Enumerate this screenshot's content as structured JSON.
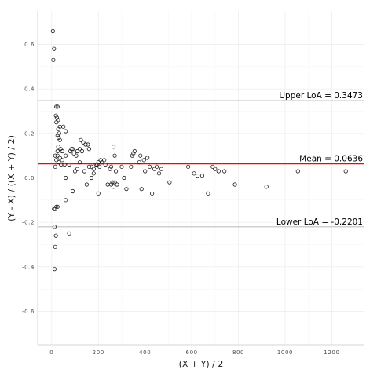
{
  "chart_data": {
    "type": "scatter",
    "title": "",
    "xlabel": "(X + Y) / 2",
    "ylabel": "(Y - X) / ((X + Y) / 2)",
    "xlim": [
      -60,
      1340
    ],
    "ylim": [
      -0.75,
      0.75
    ],
    "x_ticks": [
      0,
      200,
      400,
      600,
      800,
      1000,
      1200
    ],
    "x_tick_labels": [
      "0",
      "200",
      "400",
      "600",
      "800",
      "1000",
      "1200"
    ],
    "y_ticks": [
      -0.6,
      -0.4,
      -0.2,
      0.0,
      0.2,
      0.4,
      0.6
    ],
    "y_tick_labels": [
      "-0.6",
      "-0.4",
      "-0.2",
      "0.0",
      "0.2",
      "0.4",
      "0.6"
    ],
    "grid": true,
    "reference_lines": [
      {
        "name": "upper",
        "value": 0.3473,
        "label": "Upper LoA = 0.3473",
        "color": "#c0c0c0"
      },
      {
        "name": "mean",
        "value": 0.0636,
        "label": "Mean = 0.0636",
        "color": "#ff0000"
      },
      {
        "name": "lower",
        "value": -0.2201,
        "label": "Lower LoA = -0.2201",
        "color": "#c0c0c0"
      }
    ],
    "points": [
      [
        5,
        0.66
      ],
      [
        10,
        0.58
      ],
      [
        7,
        0.53
      ],
      [
        20,
        0.32
      ],
      [
        25,
        0.32
      ],
      [
        18,
        0.28
      ],
      [
        22,
        0.27
      ],
      [
        27,
        0.26
      ],
      [
        20,
        0.25
      ],
      [
        35,
        0.23
      ],
      [
        50,
        0.23
      ],
      [
        60,
        0.21
      ],
      [
        28,
        0.22
      ],
      [
        32,
        0.2
      ],
      [
        25,
        0.19
      ],
      [
        30,
        0.18
      ],
      [
        35,
        0.17
      ],
      [
        28,
        0.14
      ],
      [
        38,
        0.13
      ],
      [
        45,
        0.12
      ],
      [
        15,
        0.1
      ],
      [
        25,
        0.1
      ],
      [
        35,
        0.09
      ],
      [
        45,
        0.08
      ],
      [
        20,
        0.08
      ],
      [
        30,
        0.07
      ],
      [
        40,
        0.06
      ],
      [
        55,
        0.06
      ],
      [
        15,
        0.05
      ],
      [
        25,
        0.12
      ],
      [
        60,
        0.1
      ],
      [
        80,
        0.12
      ],
      [
        85,
        0.13
      ],
      [
        90,
        0.13
      ],
      [
        95,
        0.11
      ],
      [
        105,
        0.1
      ],
      [
        110,
        0.12
      ],
      [
        120,
        0.13
      ],
      [
        130,
        0.12
      ],
      [
        145,
        0.15
      ],
      [
        155,
        0.15
      ],
      [
        160,
        0.13
      ],
      [
        125,
        0.17
      ],
      [
        135,
        0.16
      ],
      [
        170,
        0.05
      ],
      [
        180,
        0.04
      ],
      [
        190,
        0.06
      ],
      [
        195,
        0.06
      ],
      [
        200,
        0.07
      ],
      [
        205,
        0.05
      ],
      [
        210,
        0.08
      ],
      [
        215,
        0.07
      ],
      [
        225,
        0.08
      ],
      [
        230,
        0.06
      ],
      [
        75,
        0.06
      ],
      [
        120,
        0.07
      ],
      [
        160,
        0.05
      ],
      [
        110,
        0.04
      ],
      [
        140,
        0.03
      ],
      [
        100,
        0.03
      ],
      [
        180,
        0.02
      ],
      [
        170,
        0.0
      ],
      [
        60,
        0.0
      ],
      [
        90,
        -0.06
      ],
      [
        150,
        -0.03
      ],
      [
        200,
        -0.07
      ],
      [
        240,
        -0.03
      ],
      [
        250,
        0.04
      ],
      [
        255,
        0.05
      ],
      [
        265,
        0.14
      ],
      [
        270,
        0.1
      ],
      [
        275,
        0.03
      ],
      [
        260,
        -0.02
      ],
      [
        270,
        -0.02
      ],
      [
        280,
        -0.03
      ],
      [
        265,
        -0.04
      ],
      [
        255,
        -0.03
      ],
      [
        300,
        0.05
      ],
      [
        310,
        0.0
      ],
      [
        320,
        -0.05
      ],
      [
        340,
        0.05
      ],
      [
        345,
        0.1
      ],
      [
        350,
        0.11
      ],
      [
        355,
        0.12
      ],
      [
        375,
        0.07
      ],
      [
        380,
        0.1
      ],
      [
        385,
        -0.05
      ],
      [
        395,
        0.08
      ],
      [
        400,
        0.03
      ],
      [
        410,
        0.09
      ],
      [
        420,
        0.05
      ],
      [
        430,
        -0.07
      ],
      [
        440,
        0.04
      ],
      [
        450,
        0.05
      ],
      [
        460,
        0.02
      ],
      [
        470,
        0.04
      ],
      [
        505,
        -0.02
      ],
      [
        585,
        0.05
      ],
      [
        610,
        0.02
      ],
      [
        625,
        0.01
      ],
      [
        645,
        0.01
      ],
      [
        670,
        -0.07
      ],
      [
        690,
        0.05
      ],
      [
        700,
        0.04
      ],
      [
        715,
        0.03
      ],
      [
        740,
        0.03
      ],
      [
        785,
        -0.03
      ],
      [
        920,
        -0.04
      ],
      [
        1055,
        0.03
      ],
      [
        1260,
        0.03
      ],
      [
        60,
        -0.1
      ],
      [
        75,
        -0.25
      ],
      [
        20,
        -0.13
      ],
      [
        25,
        -0.13
      ],
      [
        15,
        -0.14
      ],
      [
        10,
        -0.14
      ],
      [
        12,
        -0.22
      ],
      [
        18,
        -0.26
      ],
      [
        15,
        -0.31
      ],
      [
        12,
        -0.41
      ]
    ]
  }
}
